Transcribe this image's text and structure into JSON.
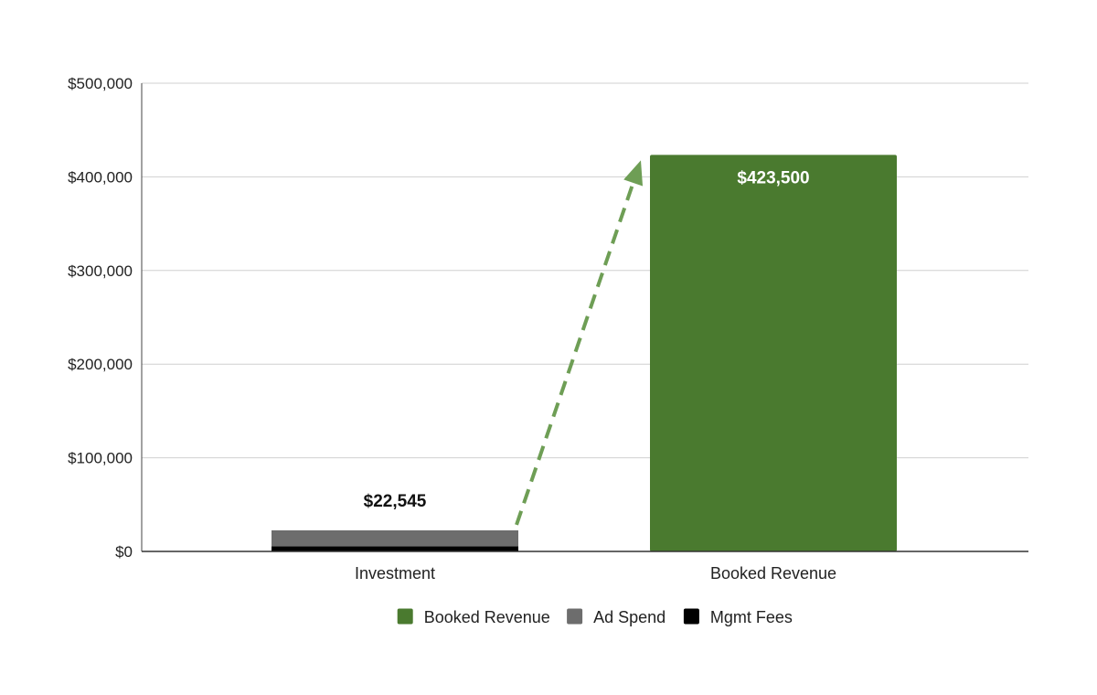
{
  "chart_data": {
    "type": "bar",
    "stacked": true,
    "categories": [
      "Investment",
      "Booked Revenue"
    ],
    "series": [
      {
        "name": "Booked Revenue",
        "color": "#4a7a2f",
        "values": [
          0,
          423500
        ]
      },
      {
        "name": "Ad Spend",
        "color": "#6d6d6d",
        "values": [
          17045,
          0
        ]
      },
      {
        "name": "Mgmt Fees",
        "color": "#000000",
        "values": [
          5500,
          0
        ]
      }
    ],
    "data_labels": [
      {
        "category": "Investment",
        "text": "$22,545",
        "value": 22545,
        "color": "#111111",
        "position": "above"
      },
      {
        "category": "Booked Revenue",
        "text": "$423,500",
        "value": 423500,
        "color": "#ffffff",
        "position": "inside-top"
      }
    ],
    "y_ticks": [
      {
        "value": 0,
        "label": "$0"
      },
      {
        "value": 100000,
        "label": "$100,000"
      },
      {
        "value": 200000,
        "label": "$200,000"
      },
      {
        "value": 300000,
        "label": "$300,000"
      },
      {
        "value": 400000,
        "label": "$400,000"
      },
      {
        "value": 500000,
        "label": "$500,000"
      }
    ],
    "ylim": [
      0,
      500000
    ],
    "grid": true,
    "legend_position": "bottom",
    "annotation": {
      "type": "dashed-arrow",
      "from": "Investment",
      "to": "Booked Revenue",
      "color": "#6e9e55"
    },
    "title": "",
    "xlabel": "",
    "ylabel": ""
  }
}
